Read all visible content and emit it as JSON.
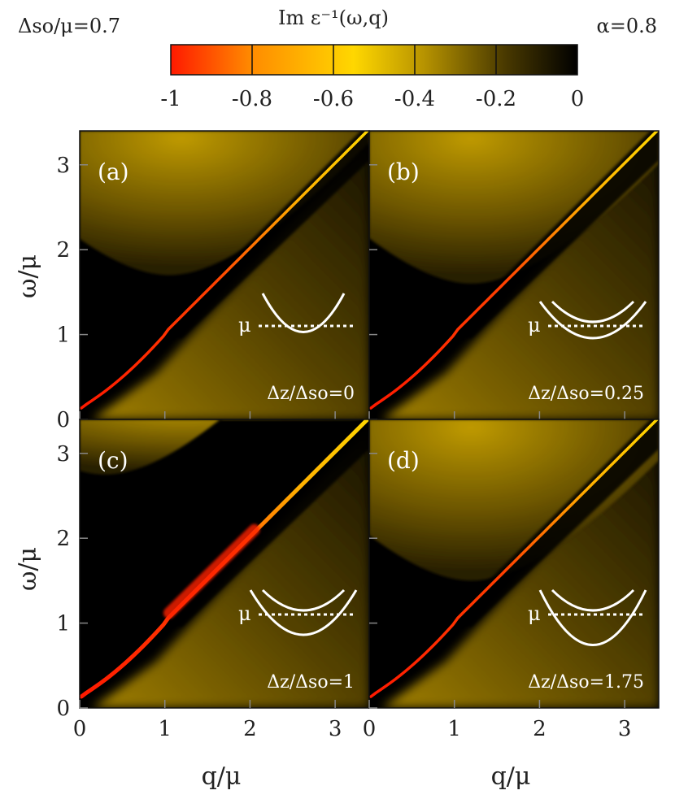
{
  "header": {
    "left_label": "Δso/μ=0.7",
    "title": "Im ε⁻¹(ω,q)",
    "right_label": "α=0.8"
  },
  "colorbar": {
    "ticks": [
      "-1",
      "-0.8",
      "-0.6",
      "-0.4",
      "-0.2",
      "0"
    ],
    "values": [
      -1,
      -0.8,
      -0.6,
      -0.4,
      -0.2,
      0
    ],
    "range": [
      -1,
      0
    ],
    "colors": [
      "#ff1a00",
      "#ff8c00",
      "#ffd700",
      "#b89400",
      "#4a3a00",
      "#000000"
    ]
  },
  "chart_data": [
    {
      "type": "heatmap",
      "panel": "(a)",
      "xlabel": "q/μ",
      "ylabel": "ω/μ",
      "xlim": [
        0,
        3.4
      ],
      "ylim": [
        0,
        3.4
      ],
      "xticks": [
        "0",
        "1",
        "2",
        "3"
      ],
      "yticks": [
        "0",
        "1",
        "2",
        "3"
      ],
      "annotation": "Δz/Δso=0",
      "inset_label": "μ"
    },
    {
      "type": "heatmap",
      "panel": "(b)",
      "xlabel": "q/μ",
      "ylabel": "ω/μ",
      "xlim": [
        0,
        3.4
      ],
      "ylim": [
        0,
        3.4
      ],
      "xticks": [
        "0",
        "1",
        "2",
        "3"
      ],
      "yticks": [
        "0",
        "1",
        "2",
        "3"
      ],
      "annotation": "Δz/Δso=0.25",
      "inset_label": "μ"
    },
    {
      "type": "heatmap",
      "panel": "(c)",
      "xlabel": "q/μ",
      "ylabel": "ω/μ",
      "xlim": [
        0,
        3.4
      ],
      "ylim": [
        0,
        3.4
      ],
      "xticks": [
        "0",
        "1",
        "2",
        "3"
      ],
      "yticks": [
        "0",
        "1",
        "2",
        "3"
      ],
      "annotation": "Δz/Δso=1",
      "inset_label": "μ"
    },
    {
      "type": "heatmap",
      "panel": "(d)",
      "xlabel": "q/μ",
      "ylabel": "ω/μ",
      "xlim": [
        0,
        3.4
      ],
      "ylim": [
        0,
        3.4
      ],
      "xticks": [
        "0",
        "1",
        "2",
        "3"
      ],
      "yticks": [
        "0",
        "1",
        "2",
        "3"
      ],
      "annotation": "Δz/Δso=1.75",
      "inset_label": "μ"
    }
  ],
  "axes": {
    "xlabel": "q/μ",
    "ylabel": "ω/μ"
  }
}
